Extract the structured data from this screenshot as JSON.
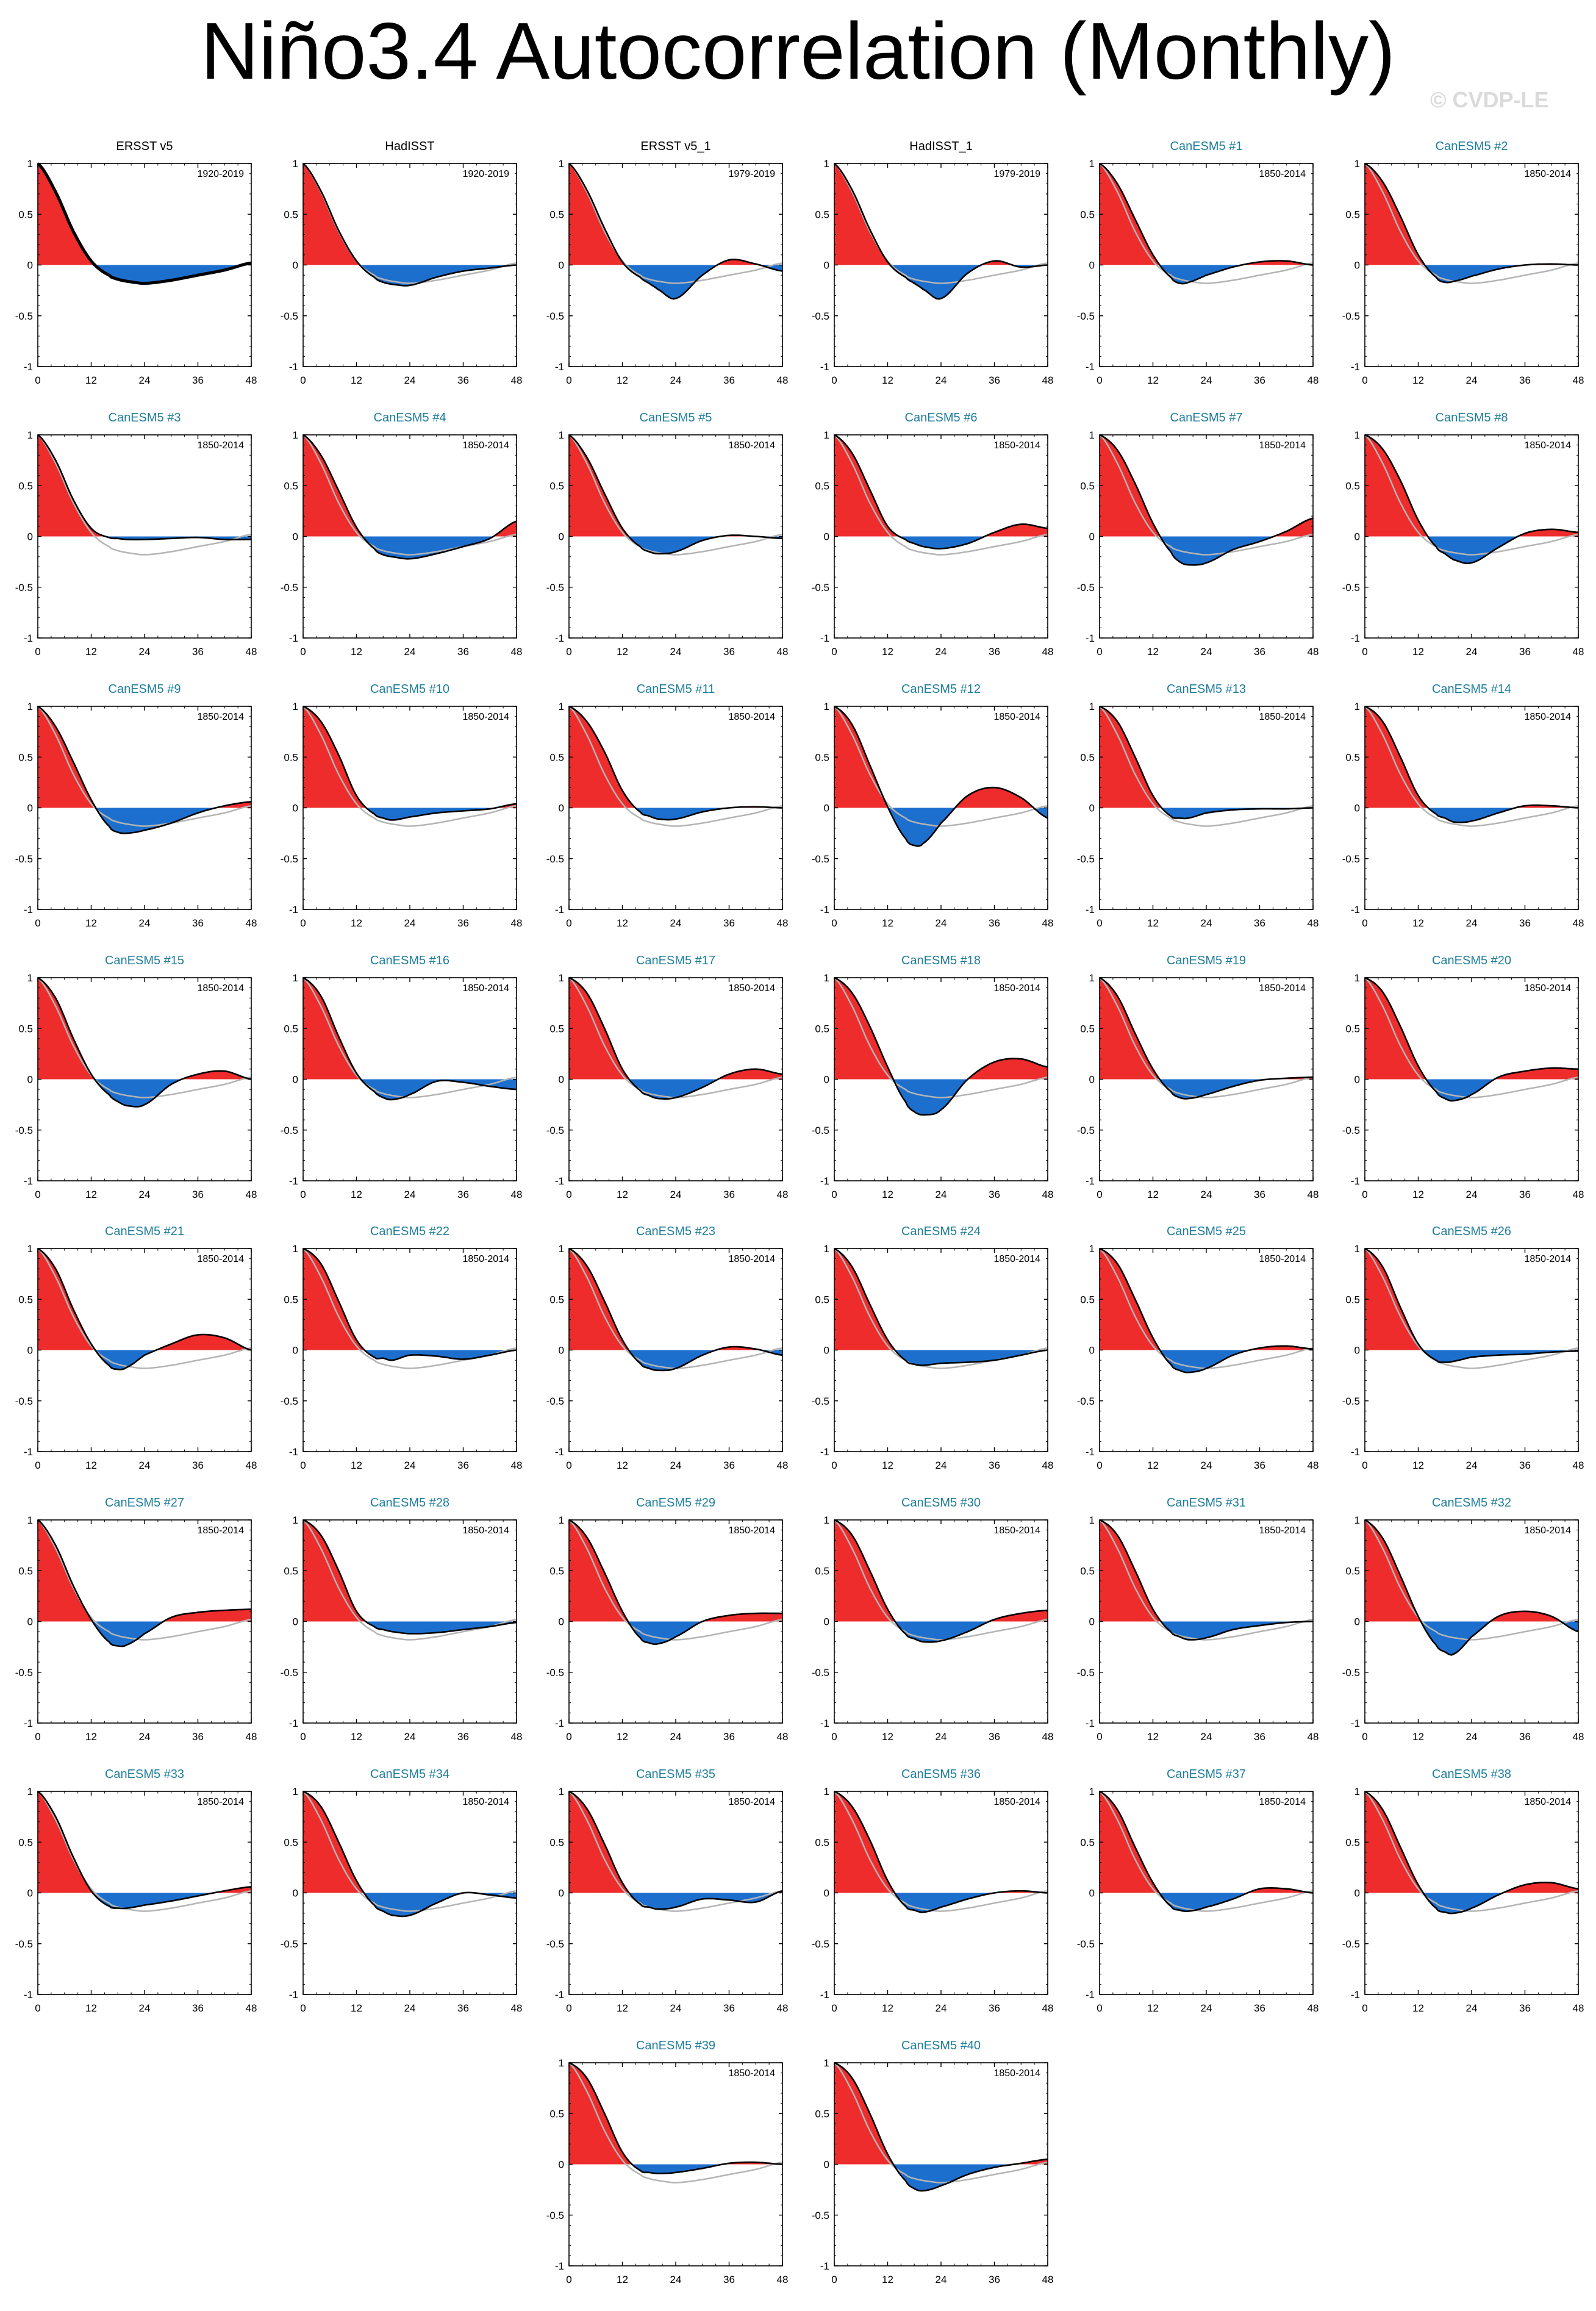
{
  "title": "Niño3.4 Autocorrelation (Monthly)",
  "watermark": "© CVDP-LE",
  "colors": {
    "positive_fill": "#ee2c2c",
    "negative_fill": "#1d6fce",
    "observed_line": "#b4b4b4",
    "panel_line": "#000000",
    "observation_title": "#000000",
    "model_title": "#1e7d9c"
  },
  "chart_data": {
    "type": "area",
    "xlabel": "",
    "ylabel": "",
    "xlim": [
      0,
      48
    ],
    "ylim": [
      -1,
      1
    ],
    "xticks": [
      0,
      12,
      24,
      36,
      48
    ],
    "xtick_labels": [
      "0",
      "12",
      "24",
      "36",
      "48"
    ],
    "yticks": [
      1,
      0.5,
      0,
      -0.5,
      -1
    ],
    "ytick_labels": [
      "1",
      "0.5",
      "0",
      "-0.5",
      "-1"
    ],
    "grid": false,
    "legend": "none",
    "reference_series": "ERSST v5",
    "lags": [
      0,
      4,
      8,
      12,
      16,
      18,
      20,
      24,
      30,
      36,
      42,
      48
    ],
    "panels": [
      {
        "name": "ERSST v5",
        "period": "1920-2019",
        "kind": "obs",
        "values": [
          1,
          0.72,
          0.33,
          0.04,
          -0.1,
          -0.14,
          -0.16,
          -0.18,
          -0.15,
          -0.1,
          -0.05,
          0.02
        ]
      },
      {
        "name": "HadISST",
        "period": "1920-2019",
        "kind": "obs",
        "values": [
          1,
          0.73,
          0.34,
          0.04,
          -0.12,
          -0.17,
          -0.19,
          -0.2,
          -0.12,
          -0.06,
          -0.03,
          0
        ]
      },
      {
        "name": "ERSST v5_1",
        "period": "1979-2019",
        "kind": "obs",
        "values": [
          1,
          0.74,
          0.36,
          0.03,
          -0.12,
          -0.18,
          -0.24,
          -0.33,
          -0.1,
          0.05,
          0.01,
          -0.06
        ]
      },
      {
        "name": "HadISST_1",
        "period": "1979-2019",
        "kind": "obs",
        "values": [
          1,
          0.74,
          0.35,
          0.03,
          -0.12,
          -0.18,
          -0.24,
          -0.33,
          -0.08,
          0.04,
          -0.02,
          0
        ]
      },
      {
        "name": "CanESM5 #1",
        "period": "1850-2014",
        "kind": "model",
        "values": [
          1,
          0.8,
          0.45,
          0.1,
          -0.12,
          -0.18,
          -0.17,
          -0.1,
          -0.02,
          0.03,
          0.04,
          0
        ]
      },
      {
        "name": "CanESM5 #2",
        "period": "1850-2014",
        "kind": "model",
        "values": [
          1,
          0.82,
          0.48,
          0.1,
          -0.12,
          -0.17,
          -0.16,
          -0.11,
          -0.04,
          0,
          0.01,
          0
        ]
      },
      {
        "name": "CanESM5 #3",
        "period": "1850-2014",
        "kind": "model",
        "values": [
          1,
          0.75,
          0.36,
          0.08,
          -0.01,
          -0.02,
          -0.03,
          -0.03,
          -0.02,
          -0.01,
          -0.03,
          -0.03
        ]
      },
      {
        "name": "CanESM5 #4",
        "period": "1850-2014",
        "kind": "model",
        "values": [
          1,
          0.8,
          0.45,
          0.09,
          -0.12,
          -0.18,
          -0.2,
          -0.22,
          -0.17,
          -0.1,
          -0.02,
          0.15
        ]
      },
      {
        "name": "CanESM5 #5",
        "period": "1850-2014",
        "kind": "model",
        "values": [
          1,
          0.78,
          0.42,
          0.08,
          -0.1,
          -0.15,
          -0.17,
          -0.15,
          -0.04,
          0.01,
          0,
          -0.02
        ]
      },
      {
        "name": "CanESM5 #6",
        "period": "1850-2014",
        "kind": "model",
        "values": [
          1,
          0.82,
          0.46,
          0.1,
          -0.03,
          -0.07,
          -0.1,
          -0.12,
          -0.07,
          0.04,
          0.12,
          0.08
        ]
      },
      {
        "name": "CanESM5 #7",
        "period": "1850-2014",
        "kind": "model",
        "values": [
          1,
          0.85,
          0.52,
          0.13,
          -0.15,
          -0.25,
          -0.28,
          -0.26,
          -0.13,
          -0.05,
          0.05,
          0.18
        ]
      },
      {
        "name": "CanESM5 #8",
        "period": "1850-2014",
        "kind": "model",
        "values": [
          1,
          0.86,
          0.55,
          0.16,
          -0.1,
          -0.17,
          -0.23,
          -0.26,
          -0.11,
          0.03,
          0.07,
          0.04
        ]
      },
      {
        "name": "CanESM5 #9",
        "period": "1850-2014",
        "kind": "model",
        "values": [
          1,
          0.8,
          0.45,
          0.08,
          -0.18,
          -0.24,
          -0.25,
          -0.22,
          -0.15,
          -0.05,
          0.02,
          0.06
        ]
      },
      {
        "name": "CanESM5 #10",
        "period": "1850-2014",
        "kind": "model",
        "values": [
          1,
          0.85,
          0.52,
          0.12,
          -0.06,
          -0.1,
          -0.12,
          -0.09,
          -0.05,
          -0.03,
          -0.01,
          0.04
        ]
      },
      {
        "name": "CanESM5 #11",
        "period": "1850-2014",
        "kind": "model",
        "values": [
          1,
          0.85,
          0.55,
          0.17,
          -0.04,
          -0.08,
          -0.11,
          -0.11,
          -0.04,
          0,
          0.01,
          0
        ]
      },
      {
        "name": "CanESM5 #12",
        "period": "1850-2014",
        "kind": "model",
        "values": [
          1,
          0.82,
          0.42,
          0.01,
          -0.3,
          -0.37,
          -0.35,
          -0.15,
          0.12,
          0.2,
          0.1,
          -0.1
        ]
      },
      {
        "name": "CanESM5 #13",
        "period": "1850-2014",
        "kind": "model",
        "values": [
          1,
          0.85,
          0.5,
          0.12,
          -0.08,
          -0.1,
          -0.1,
          -0.05,
          -0.02,
          -0.01,
          -0.01,
          0
        ]
      },
      {
        "name": "CanESM5 #14",
        "period": "1850-2014",
        "kind": "model",
        "values": [
          1,
          0.85,
          0.5,
          0.12,
          -0.06,
          -0.1,
          -0.14,
          -0.13,
          -0.05,
          0.02,
          0.02,
          0
        ]
      },
      {
        "name": "CanESM5 #15",
        "period": "1850-2014",
        "kind": "model",
        "values": [
          1,
          0.8,
          0.4,
          0.05,
          -0.15,
          -0.22,
          -0.26,
          -0.25,
          -0.05,
          0.05,
          0.08,
          0
        ]
      },
      {
        "name": "CanESM5 #16",
        "period": "1850-2014",
        "kind": "model",
        "values": [
          1,
          0.82,
          0.42,
          0.06,
          -0.12,
          -0.18,
          -0.2,
          -0.15,
          -0.02,
          -0.03,
          -0.07,
          -0.1
        ]
      },
      {
        "name": "CanESM5 #17",
        "period": "1850-2014",
        "kind": "model",
        "values": [
          1,
          0.85,
          0.5,
          0.1,
          -0.11,
          -0.16,
          -0.19,
          -0.18,
          -0.08,
          0.05,
          0.1,
          0.05
        ]
      },
      {
        "name": "CanESM5 #18",
        "period": "1850-2014",
        "kind": "model",
        "values": [
          1,
          0.85,
          0.52,
          0.12,
          -0.22,
          -0.32,
          -0.35,
          -0.3,
          0,
          0.17,
          0.2,
          0.12
        ]
      },
      {
        "name": "CanESM5 #19",
        "period": "1850-2014",
        "kind": "model",
        "values": [
          1,
          0.82,
          0.45,
          0.1,
          -0.12,
          -0.18,
          -0.19,
          -0.15,
          -0.07,
          -0.01,
          0.01,
          0.02
        ]
      },
      {
        "name": "CanESM5 #20",
        "period": "1850-2014",
        "kind": "model",
        "values": [
          1,
          0.86,
          0.52,
          0.13,
          -0.12,
          -0.19,
          -0.21,
          -0.15,
          0.02,
          0.08,
          0.11,
          0.1
        ]
      },
      {
        "name": "CanESM5 #21",
        "period": "1850-2014",
        "kind": "model",
        "values": [
          1,
          0.8,
          0.4,
          0.06,
          -0.15,
          -0.19,
          -0.17,
          -0.05,
          0.06,
          0.15,
          0.12,
          0
        ]
      },
      {
        "name": "CanESM5 #22",
        "period": "1850-2014",
        "kind": "model",
        "values": [
          1,
          0.85,
          0.48,
          0.1,
          -0.07,
          -0.08,
          -0.1,
          -0.05,
          -0.06,
          -0.09,
          -0.05,
          0
        ]
      },
      {
        "name": "CanESM5 #23",
        "period": "1850-2014",
        "kind": "model",
        "values": [
          1,
          0.83,
          0.48,
          0.1,
          -0.13,
          -0.18,
          -0.2,
          -0.18,
          -0.05,
          0.03,
          0.01,
          -0.05
        ]
      },
      {
        "name": "CanESM5 #24",
        "period": "1850-2014",
        "kind": "model",
        "values": [
          1,
          0.82,
          0.45,
          0.1,
          -0.1,
          -0.14,
          -0.15,
          -0.13,
          -0.12,
          -0.1,
          -0.05,
          0
        ]
      },
      {
        "name": "CanESM5 #25",
        "period": "1850-2014",
        "kind": "model",
        "values": [
          1,
          0.85,
          0.5,
          0.12,
          -0.14,
          -0.2,
          -0.22,
          -0.18,
          -0.05,
          0.02,
          0.04,
          0.01
        ]
      },
      {
        "name": "CanESM5 #26",
        "period": "1850-2014",
        "kind": "model",
        "values": [
          1,
          0.82,
          0.42,
          0.06,
          -0.1,
          -0.12,
          -0.11,
          -0.07,
          -0.05,
          -0.04,
          -0.02,
          -0.01
        ]
      },
      {
        "name": "CanESM5 #27",
        "period": "1850-2014",
        "kind": "model",
        "values": [
          1,
          0.75,
          0.35,
          0.02,
          -0.2,
          -0.24,
          -0.23,
          -0.12,
          0.04,
          0.09,
          0.11,
          0.12
        ]
      },
      {
        "name": "CanESM5 #28",
        "period": "1850-2014",
        "kind": "model",
        "values": [
          1,
          0.85,
          0.5,
          0.1,
          -0.05,
          -0.08,
          -0.1,
          -0.12,
          -0.11,
          -0.08,
          -0.05,
          -0.01
        ]
      },
      {
        "name": "CanESM5 #29",
        "period": "1850-2014",
        "kind": "model",
        "values": [
          1,
          0.83,
          0.48,
          0.1,
          -0.16,
          -0.21,
          -0.22,
          -0.15,
          0,
          0.06,
          0.08,
          0.08
        ]
      },
      {
        "name": "CanESM5 #30",
        "period": "1850-2014",
        "kind": "model",
        "values": [
          1,
          0.85,
          0.5,
          0.12,
          -0.12,
          -0.17,
          -0.2,
          -0.19,
          -0.1,
          0.02,
          0.08,
          0.11
        ]
      },
      {
        "name": "CanESM5 #31",
        "period": "1850-2014",
        "kind": "model",
        "values": [
          1,
          0.85,
          0.5,
          0.12,
          -0.1,
          -0.15,
          -0.18,
          -0.16,
          -0.08,
          -0.04,
          -0.01,
          0
        ]
      },
      {
        "name": "CanESM5 #32",
        "period": "1850-2014",
        "kind": "model",
        "values": [
          1,
          0.82,
          0.45,
          0.05,
          -0.23,
          -0.3,
          -0.32,
          -0.15,
          0.05,
          0.1,
          0.05,
          -0.1
        ]
      },
      {
        "name": "CanESM5 #33",
        "period": "1850-2014",
        "kind": "model",
        "values": [
          1,
          0.75,
          0.35,
          0.02,
          -0.13,
          -0.15,
          -0.15,
          -0.12,
          -0.08,
          -0.03,
          0.02,
          0.06
        ]
      },
      {
        "name": "CanESM5 #34",
        "period": "1850-2014",
        "kind": "model",
        "values": [
          1,
          0.85,
          0.5,
          0.12,
          -0.12,
          -0.18,
          -0.22,
          -0.22,
          -0.1,
          0,
          -0.02,
          -0.05
        ]
      },
      {
        "name": "CanESM5 #35",
        "period": "1850-2014",
        "kind": "model",
        "values": [
          1,
          0.83,
          0.48,
          0.1,
          -0.11,
          -0.14,
          -0.16,
          -0.14,
          -0.06,
          -0.07,
          -0.09,
          0.02
        ]
      },
      {
        "name": "CanESM5 #36",
        "period": "1850-2014",
        "kind": "model",
        "values": [
          1,
          0.85,
          0.52,
          0.12,
          -0.13,
          -0.17,
          -0.19,
          -0.14,
          -0.06,
          0,
          0.02,
          0
        ]
      },
      {
        "name": "CanESM5 #37",
        "period": "1850-2014",
        "kind": "model",
        "values": [
          1,
          0.82,
          0.45,
          0.1,
          -0.13,
          -0.17,
          -0.18,
          -0.14,
          -0.06,
          0.04,
          0.04,
          0
        ]
      },
      {
        "name": "CanESM5 #38",
        "period": "1850-2014",
        "kind": "model",
        "values": [
          1,
          0.82,
          0.45,
          0.08,
          -0.15,
          -0.19,
          -0.2,
          -0.15,
          -0.02,
          0.08,
          0.1,
          0.04
        ]
      },
      {
        "name": "CanESM5 #39",
        "period": "1850-2014",
        "kind": "model",
        "values": [
          1,
          0.85,
          0.5,
          0.12,
          -0.06,
          -0.08,
          -0.09,
          -0.08,
          -0.04,
          0.01,
          0.02,
          0
        ]
      },
      {
        "name": "CanESM5 #40",
        "period": "1850-2014",
        "kind": "model",
        "values": [
          1,
          0.85,
          0.5,
          0.1,
          -0.16,
          -0.24,
          -0.26,
          -0.21,
          -0.1,
          -0.03,
          0.01,
          0.05
        ]
      }
    ]
  }
}
